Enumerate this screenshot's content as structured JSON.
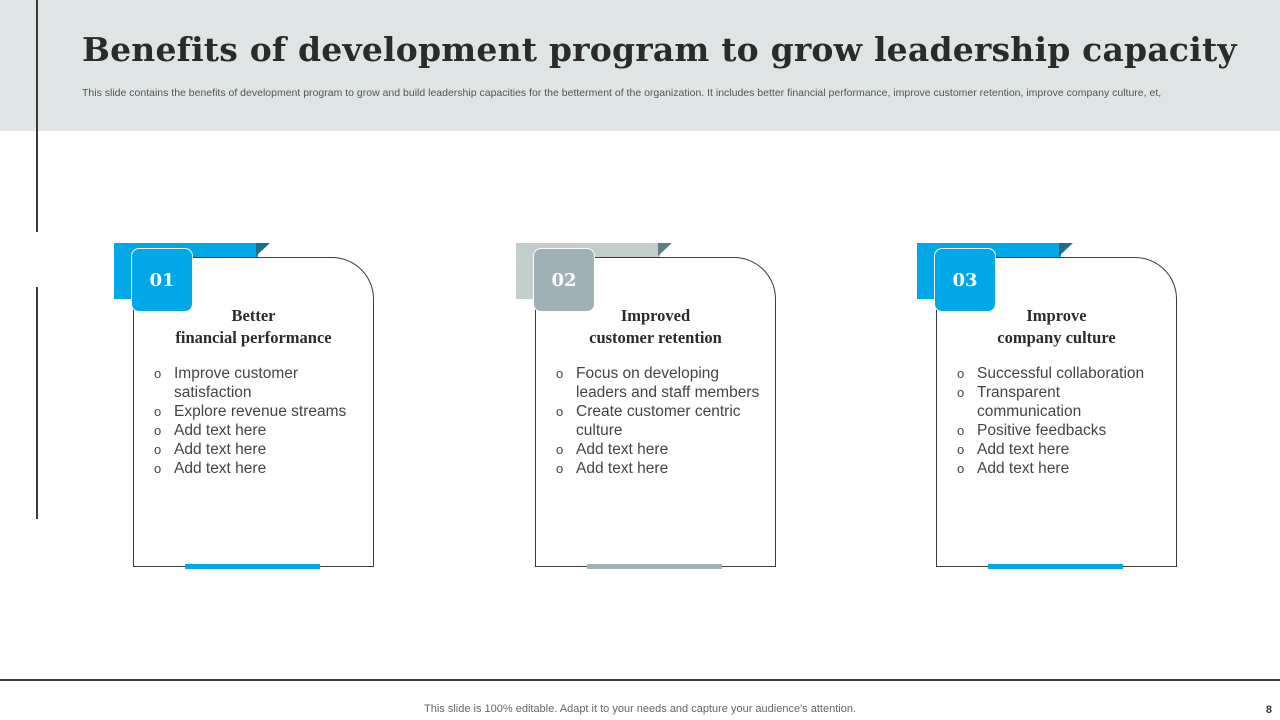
{
  "slide": {
    "title": "Benefits of development  program to grow leadership capacity",
    "subtitle": "This slide contains the benefits of development program to grow and build leadership capacities for the betterment of the organization. It includes better financial performance, improve customer retention, improve company culture, et,"
  },
  "colors": {
    "header_band": "#dfe5e4",
    "accent_blue": "#00a8e8",
    "accent_grey": "#9fb1b4",
    "grey_tab": "#c2cdcc"
  },
  "cards": [
    {
      "number": "01",
      "title_line1": "Better",
      "title_line2": "financial performance",
      "bullets": [
        "Improve customer satisfaction",
        "Explore revenue  streams",
        "Add text here",
        "Add text here",
        "Add text here"
      ]
    },
    {
      "number": "02",
      "title_line1": "Improved",
      "title_line2": "customer retention",
      "bullets": [
        "Focus on developing leaders  and staff members",
        "Create customer centric culture",
        "Add text here",
        "Add text here"
      ]
    },
    {
      "number": "03",
      "title_line1": "Improve",
      "title_line2": "company culture",
      "bullets": [
        "Successful collaboration",
        "Transparent communication",
        "Positive feedbacks",
        "Add text here",
        "Add text here"
      ]
    }
  ],
  "bullet_marker": "o",
  "footer": {
    "note": "This slide is 100% editable. Adapt it to your needs and capture your audience's attention.",
    "page_number": "8"
  }
}
